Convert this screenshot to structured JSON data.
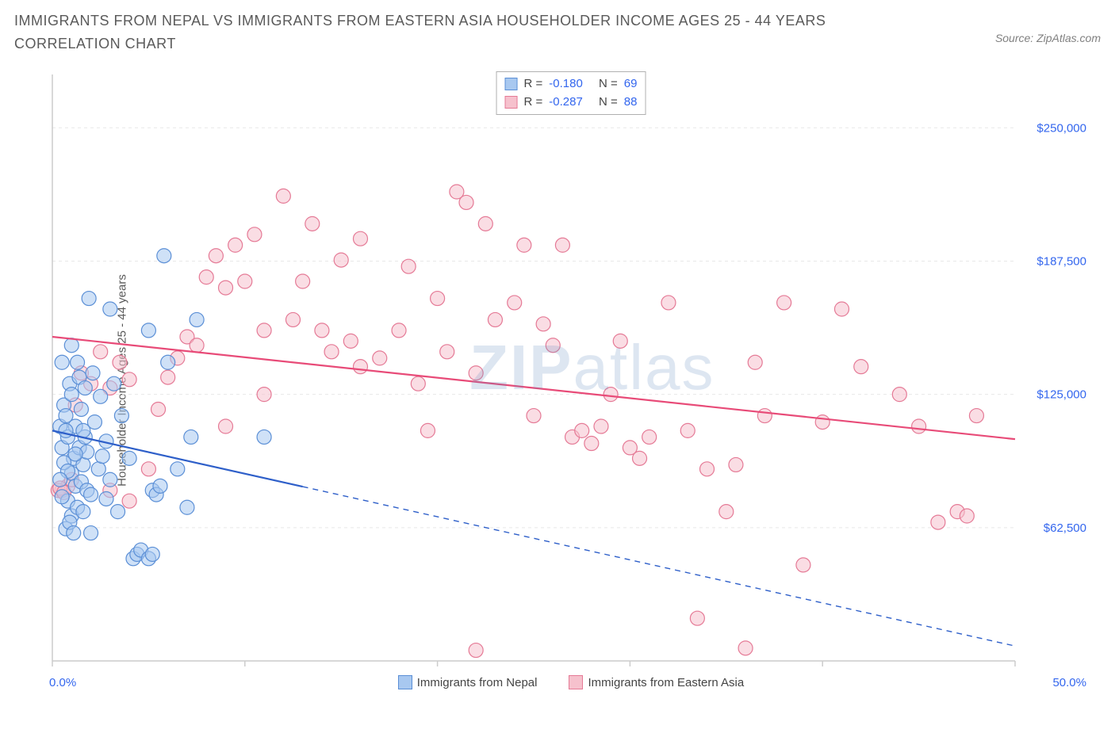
{
  "title": "IMMIGRANTS FROM NEPAL VS IMMIGRANTS FROM EASTERN ASIA HOUSEHOLDER INCOME AGES 25 - 44 YEARS CORRELATION CHART",
  "source": "Source: ZipAtlas.com",
  "y_axis_label": "Householder Income Ages 25 - 44 years",
  "watermark_bold": "ZIP",
  "watermark_light": "atlas",
  "chart": {
    "type": "scatter",
    "background_color": "#ffffff",
    "grid_color": "#e8e8e8",
    "axis_line_color": "#cccccc",
    "xlim": [
      0,
      50
    ],
    "ylim": [
      0,
      275000
    ],
    "x_ticks": [
      0,
      10,
      20,
      30,
      40,
      50
    ],
    "x_tick_labels_shown": {
      "0": "0.0%",
      "50": "50.0%"
    },
    "y_ticks": [
      62500,
      125000,
      187500,
      250000
    ],
    "y_tick_labels": [
      "$62,500",
      "$125,000",
      "$187,500",
      "$250,000"
    ],
    "tick_label_color": "#3366ee",
    "tick_label_fontsize": 15,
    "marker_radius": 9,
    "marker_opacity": 0.55,
    "series": [
      {
        "name": "Immigrants from Nepal",
        "fill_color": "#a8c8f0",
        "stroke_color": "#5b8fd6",
        "line_color": "#2e5fc9",
        "line_width": 2.2,
        "R": "-0.180",
        "N": "69",
        "trend": {
          "x1": 0,
          "y1": 108000,
          "x2": 50,
          "y2": 7000,
          "solid_until_x": 13
        },
        "points": [
          [
            0.4,
            110000
          ],
          [
            0.5,
            100000
          ],
          [
            0.6,
            120000
          ],
          [
            0.7,
            115000
          ],
          [
            0.8,
            105000
          ],
          [
            0.9,
            130000
          ],
          [
            1.0,
            125000
          ],
          [
            1.1,
            95000
          ],
          [
            1.2,
            110000
          ],
          [
            1.3,
            140000
          ],
          [
            1.4,
            100000
          ],
          [
            1.5,
            118000
          ],
          [
            1.6,
            92000
          ],
          [
            1.7,
            105000
          ],
          [
            1.8,
            98000
          ],
          [
            1.0,
            88000
          ],
          [
            1.2,
            82000
          ],
          [
            1.5,
            84000
          ],
          [
            1.8,
            80000
          ],
          [
            2.0,
            78000
          ],
          [
            2.2,
            112000
          ],
          [
            2.4,
            90000
          ],
          [
            2.6,
            96000
          ],
          [
            2.8,
            103000
          ],
          [
            3.0,
            85000
          ],
          [
            0.8,
            75000
          ],
          [
            1.0,
            68000
          ],
          [
            1.3,
            72000
          ],
          [
            1.6,
            70000
          ],
          [
            2.5,
            124000
          ],
          [
            3.0,
            165000
          ],
          [
            3.2,
            130000
          ],
          [
            3.6,
            115000
          ],
          [
            4.0,
            95000
          ],
          [
            4.2,
            48000
          ],
          [
            4.4,
            50000
          ],
          [
            4.6,
            52000
          ],
          [
            5.0,
            48000
          ],
          [
            5.0,
            155000
          ],
          [
            5.2,
            80000
          ],
          [
            5.4,
            78000
          ],
          [
            5.6,
            82000
          ],
          [
            5.2,
            50000
          ],
          [
            5.8,
            190000
          ],
          [
            6.0,
            140000
          ],
          [
            6.5,
            90000
          ],
          [
            7.0,
            72000
          ],
          [
            7.2,
            105000
          ],
          [
            7.5,
            160000
          ],
          [
            1.9,
            170000
          ],
          [
            0.7,
            62000
          ],
          [
            0.9,
            65000
          ],
          [
            1.1,
            60000
          ],
          [
            1.4,
            133000
          ],
          [
            1.7,
            128000
          ],
          [
            2.1,
            135000
          ],
          [
            0.5,
            140000
          ],
          [
            0.6,
            93000
          ],
          [
            0.8,
            89000
          ],
          [
            1.0,
            148000
          ],
          [
            1.2,
            97000
          ],
          [
            11.0,
            105000
          ],
          [
            0.4,
            85000
          ],
          [
            0.5,
            77000
          ],
          [
            0.7,
            108000
          ],
          [
            2.8,
            76000
          ],
          [
            3.4,
            70000
          ],
          [
            1.6,
            108000
          ],
          [
            2.0,
            60000
          ]
        ]
      },
      {
        "name": "Immigrants from Eastern Asia",
        "fill_color": "#f6c1cd",
        "stroke_color": "#e57a96",
        "line_color": "#e84b78",
        "line_width": 2.2,
        "R": "-0.287",
        "N": "88",
        "trend": {
          "x1": 0,
          "y1": 152000,
          "x2": 50,
          "y2": 104000,
          "solid_until_x": 50
        },
        "points": [
          [
            0.5,
            80000
          ],
          [
            0.8,
            82000
          ],
          [
            1.0,
            85000
          ],
          [
            1.2,
            120000
          ],
          [
            1.5,
            135000
          ],
          [
            2.0,
            130000
          ],
          [
            2.5,
            145000
          ],
          [
            3.0,
            128000
          ],
          [
            3.5,
            140000
          ],
          [
            4.0,
            132000
          ],
          [
            5.5,
            118000
          ],
          [
            6.0,
            133000
          ],
          [
            6.5,
            142000
          ],
          [
            7.0,
            152000
          ],
          [
            7.5,
            148000
          ],
          [
            8.0,
            180000
          ],
          [
            8.5,
            190000
          ],
          [
            9.0,
            175000
          ],
          [
            9.5,
            195000
          ],
          [
            10.0,
            178000
          ],
          [
            10.5,
            200000
          ],
          [
            11.0,
            155000
          ],
          [
            12.0,
            218000
          ],
          [
            12.5,
            160000
          ],
          [
            13.0,
            178000
          ],
          [
            13.5,
            205000
          ],
          [
            14.0,
            155000
          ],
          [
            14.5,
            145000
          ],
          [
            15.0,
            188000
          ],
          [
            15.5,
            150000
          ],
          [
            16.0,
            198000
          ],
          [
            17.0,
            142000
          ],
          [
            18.0,
            155000
          ],
          [
            18.5,
            185000
          ],
          [
            19.0,
            130000
          ],
          [
            20.0,
            170000
          ],
          [
            20.5,
            145000
          ],
          [
            21.0,
            220000
          ],
          [
            21.5,
            215000
          ],
          [
            22.0,
            135000
          ],
          [
            22.5,
            205000
          ],
          [
            23.0,
            160000
          ],
          [
            24.0,
            168000
          ],
          [
            24.5,
            195000
          ],
          [
            25.0,
            115000
          ],
          [
            25.5,
            158000
          ],
          [
            26.0,
            148000
          ],
          [
            27.0,
            105000
          ],
          [
            27.5,
            108000
          ],
          [
            28.0,
            102000
          ],
          [
            28.5,
            110000
          ],
          [
            29.0,
            125000
          ],
          [
            30.0,
            100000
          ],
          [
            30.5,
            95000
          ],
          [
            31.0,
            105000
          ],
          [
            32.0,
            168000
          ],
          [
            33.0,
            108000
          ],
          [
            33.5,
            20000
          ],
          [
            34.0,
            90000
          ],
          [
            35.0,
            70000
          ],
          [
            35.5,
            92000
          ],
          [
            36.0,
            6000
          ],
          [
            37.0,
            115000
          ],
          [
            38.0,
            168000
          ],
          [
            39.0,
            45000
          ],
          [
            40.0,
            112000
          ],
          [
            41.0,
            165000
          ],
          [
            42.0,
            138000
          ],
          [
            44.0,
            125000
          ],
          [
            45.0,
            110000
          ],
          [
            22.0,
            5000
          ],
          [
            46.0,
            65000
          ],
          [
            47.0,
            70000
          ],
          [
            47.5,
            68000
          ],
          [
            48.0,
            115000
          ],
          [
            3.0,
            80000
          ],
          [
            4.0,
            75000
          ],
          [
            5.0,
            90000
          ],
          [
            9.0,
            110000
          ],
          [
            11.0,
            125000
          ],
          [
            16.0,
            138000
          ],
          [
            19.5,
            108000
          ],
          [
            26.5,
            195000
          ],
          [
            29.5,
            150000
          ],
          [
            36.5,
            140000
          ],
          [
            0.3,
            80000
          ],
          [
            0.4,
            81000
          ],
          [
            0.6,
            79000
          ]
        ]
      }
    ]
  },
  "legend": {
    "x_left": "0.0%",
    "x_right": "50.0%",
    "items": [
      {
        "label": "Immigrants from Nepal",
        "fill": "#a8c8f0",
        "stroke": "#5b8fd6"
      },
      {
        "label": "Immigrants from Eastern Asia",
        "fill": "#f6c1cd",
        "stroke": "#e57a96"
      }
    ]
  },
  "stats_labels": {
    "R": "R =",
    "N": "N ="
  }
}
